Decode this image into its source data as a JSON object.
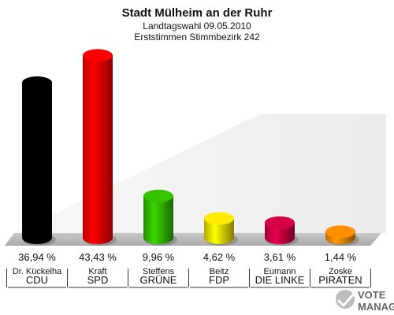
{
  "chart_data": {
    "type": "bar",
    "title": "Stadt Mülheim an der Ruhr",
    "subtitle_1": "Landtagswahl 09.05.2010",
    "subtitle_2": "Erststimmen Stimmbezirk 242",
    "categories": [
      "CDU",
      "SPD",
      "GRÜNE",
      "FDP",
      "DIE LINKE",
      "PIRATEN"
    ],
    "candidates": [
      "Dr. Kückelha",
      "Kraft",
      "Steffens",
      "Beitz",
      "Eumann",
      "Zoske"
    ],
    "values": [
      36.94,
      43.43,
      9.96,
      4.62,
      3.61,
      1.44
    ],
    "value_labels": [
      "36,94 %",
      "43,43 %",
      "9,96 %",
      "4,62 %",
      "3,61 %",
      "1,44 %"
    ],
    "colors": [
      "#000000",
      "#ff0000",
      "#33bb00",
      "#f0e000",
      "#cc0044",
      "#ff8800"
    ],
    "ylim": [
      0,
      45
    ],
    "grid": false,
    "legend": "none"
  },
  "logo": {
    "line1": "VOTE",
    "line2": "MANAGER"
  }
}
